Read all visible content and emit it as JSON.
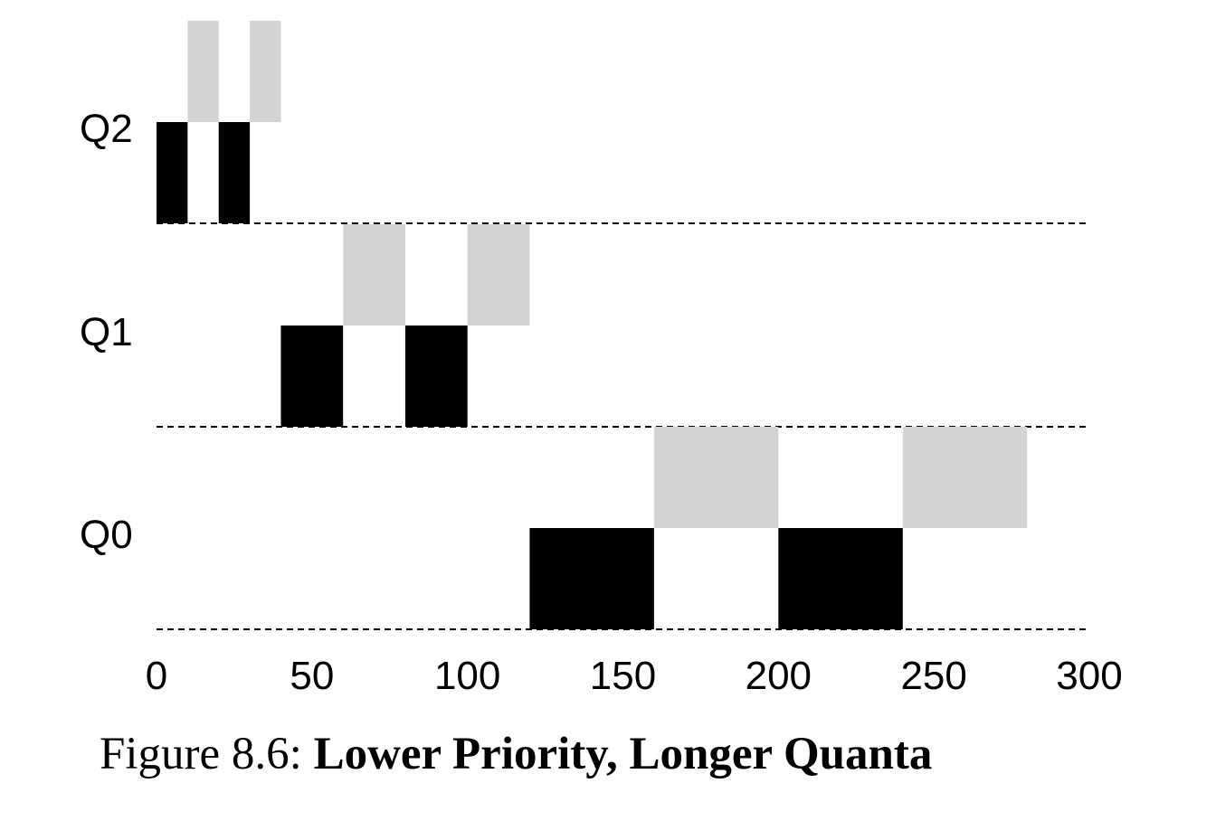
{
  "chart_data": {
    "type": "bar",
    "subtype": "gantt-timeline",
    "x_ticks": [
      "0",
      "50",
      "100",
      "150",
      "200",
      "250",
      "300"
    ],
    "xlim": [
      0,
      300
    ],
    "grid": "dashed baseline per queue",
    "queues": [
      {
        "label": "Q2",
        "segments": [
          {
            "job": "black",
            "start": 0,
            "end": 10
          },
          {
            "job": "gray",
            "start": 10,
            "end": 20
          },
          {
            "job": "black",
            "start": 20,
            "end": 30
          },
          {
            "job": "gray",
            "start": 30,
            "end": 40
          }
        ]
      },
      {
        "label": "Q1",
        "segments": [
          {
            "job": "black",
            "start": 40,
            "end": 60
          },
          {
            "job": "gray",
            "start": 60,
            "end": 80
          },
          {
            "job": "black",
            "start": 80,
            "end": 100
          },
          {
            "job": "gray",
            "start": 100,
            "end": 120
          }
        ]
      },
      {
        "label": "Q0",
        "segments": [
          {
            "job": "black",
            "start": 120,
            "end": 160
          },
          {
            "job": "gray",
            "start": 160,
            "end": 200
          },
          {
            "job": "black",
            "start": 200,
            "end": 240
          },
          {
            "job": "gray",
            "start": 240,
            "end": 280
          }
        ]
      }
    ],
    "colors": {
      "black": "#000000",
      "gray": "#d3d3d3",
      "baseline": "#000000"
    }
  },
  "caption": {
    "prefix": "Figure 8.6: ",
    "title": "Lower Priority, Longer Quanta"
  }
}
